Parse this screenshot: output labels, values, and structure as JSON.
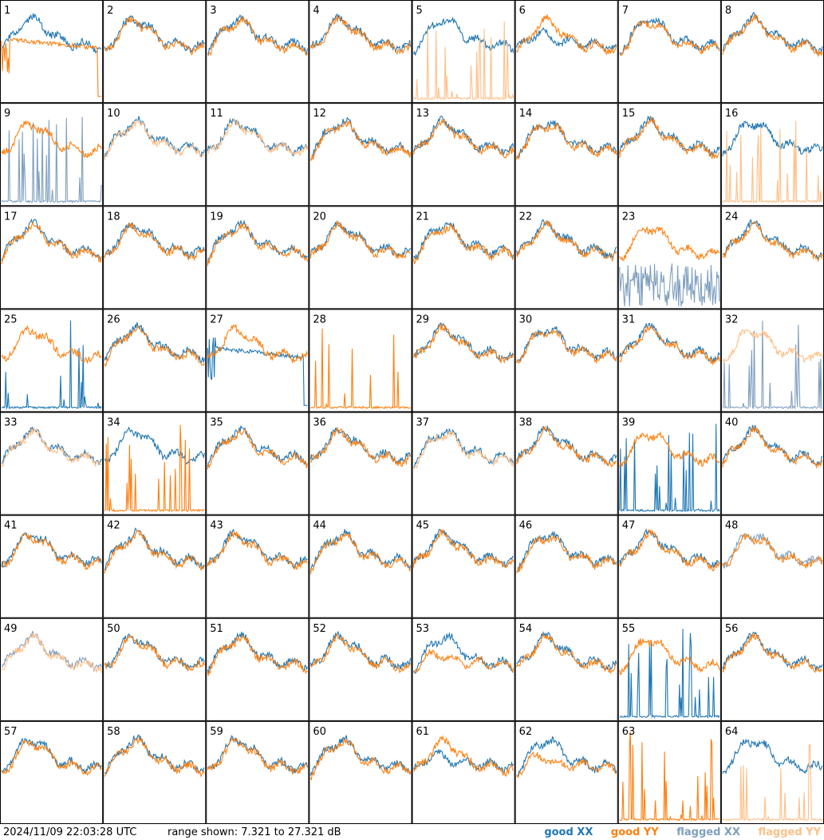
{
  "timestamp": "2024/11/09 22:03:28 UTC",
  "range_text": "range shown: 7.321 to 27.321 dB",
  "legend": [
    {
      "label": "good XX",
      "color": "#1f77b4"
    },
    {
      "label": "good YY",
      "color": "#ff7f0e"
    },
    {
      "label": "flagged XX",
      "color": "#7f9fbf"
    },
    {
      "label": "flagged YY",
      "color": "#ffbf87"
    }
  ],
  "chart_data": {
    "type": "line",
    "title": "",
    "ylim": [
      7.321,
      27.321
    ],
    "units": "dB",
    "grid": "8x8 small multiples",
    "panels": [
      {
        "id": "1",
        "xx": "good",
        "yy": "good",
        "pattern_xx": "normal",
        "pattern_yy": "ramp_drop"
      },
      {
        "id": "2",
        "xx": "good",
        "yy": "good"
      },
      {
        "id": "3",
        "xx": "good",
        "yy": "good"
      },
      {
        "id": "4",
        "xx": "good",
        "yy": "good"
      },
      {
        "id": "5",
        "xx": "good",
        "yy": "flagged",
        "pattern_yy": "spikes"
      },
      {
        "id": "6",
        "xx": "good",
        "yy": "good",
        "pattern_xx": "low_dip"
      },
      {
        "id": "7",
        "xx": "good",
        "yy": "good"
      },
      {
        "id": "8",
        "xx": "good",
        "yy": "good"
      },
      {
        "id": "9",
        "xx": "flagged",
        "yy": "good",
        "pattern_xx": "spikes"
      },
      {
        "id": "10",
        "xx": "good",
        "yy": "flagged"
      },
      {
        "id": "11",
        "xx": "good",
        "yy": "flagged"
      },
      {
        "id": "12",
        "xx": "good",
        "yy": "good"
      },
      {
        "id": "13",
        "xx": "good",
        "yy": "good"
      },
      {
        "id": "14",
        "xx": "good",
        "yy": "good"
      },
      {
        "id": "15",
        "xx": "good",
        "yy": "good"
      },
      {
        "id": "16",
        "xx": "good",
        "yy": "flagged",
        "pattern_yy": "spikes"
      },
      {
        "id": "17",
        "xx": "good",
        "yy": "good"
      },
      {
        "id": "18",
        "xx": "good",
        "yy": "good"
      },
      {
        "id": "19",
        "xx": "good",
        "yy": "good"
      },
      {
        "id": "20",
        "xx": "good",
        "yy": "good"
      },
      {
        "id": "21",
        "xx": "good",
        "yy": "good"
      },
      {
        "id": "22",
        "xx": "good",
        "yy": "good"
      },
      {
        "id": "23",
        "xx": "flagged",
        "yy": "good",
        "pattern_xx": "noisy_low"
      },
      {
        "id": "24",
        "xx": "good",
        "yy": "good"
      },
      {
        "id": "25",
        "xx": "good",
        "yy": "good",
        "pattern_xx": "spikes"
      },
      {
        "id": "26",
        "xx": "good",
        "yy": "good"
      },
      {
        "id": "27",
        "xx": "good",
        "yy": "good",
        "pattern_xx": "ramp_drop"
      },
      {
        "id": "28",
        "xx": "none",
        "yy": "good",
        "pattern_yy": "spikes"
      },
      {
        "id": "29",
        "xx": "good",
        "yy": "good"
      },
      {
        "id": "30",
        "xx": "good",
        "yy": "good"
      },
      {
        "id": "31",
        "xx": "good",
        "yy": "good"
      },
      {
        "id": "32",
        "xx": "flagged",
        "yy": "flagged",
        "pattern_xx": "spikes"
      },
      {
        "id": "33",
        "xx": "good",
        "yy": "flagged"
      },
      {
        "id": "34",
        "xx": "good",
        "yy": "good",
        "pattern_yy": "spikes"
      },
      {
        "id": "35",
        "xx": "good",
        "yy": "good"
      },
      {
        "id": "36",
        "xx": "good",
        "yy": "good"
      },
      {
        "id": "37",
        "xx": "good",
        "yy": "flagged"
      },
      {
        "id": "38",
        "xx": "good",
        "yy": "good"
      },
      {
        "id": "39",
        "xx": "good",
        "yy": "good",
        "pattern_xx": "spikes"
      },
      {
        "id": "40",
        "xx": "good",
        "yy": "good"
      },
      {
        "id": "41",
        "xx": "good",
        "yy": "good"
      },
      {
        "id": "42",
        "xx": "good",
        "yy": "good"
      },
      {
        "id": "43",
        "xx": "good",
        "yy": "good"
      },
      {
        "id": "44",
        "xx": "good",
        "yy": "good"
      },
      {
        "id": "45",
        "xx": "good",
        "yy": "good"
      },
      {
        "id": "46",
        "xx": "good",
        "yy": "good"
      },
      {
        "id": "47",
        "xx": "good",
        "yy": "good"
      },
      {
        "id": "48",
        "xx": "flagged",
        "yy": "good"
      },
      {
        "id": "49",
        "xx": "flagged",
        "yy": "flagged"
      },
      {
        "id": "50",
        "xx": "good",
        "yy": "good"
      },
      {
        "id": "51",
        "xx": "good",
        "yy": "good"
      },
      {
        "id": "52",
        "xx": "good",
        "yy": "good"
      },
      {
        "id": "53",
        "xx": "good",
        "yy": "good",
        "pattern_yy": "low_dip"
      },
      {
        "id": "54",
        "xx": "good",
        "yy": "good"
      },
      {
        "id": "55",
        "xx": "good",
        "yy": "good",
        "pattern_xx": "spikes"
      },
      {
        "id": "56",
        "xx": "good",
        "yy": "good"
      },
      {
        "id": "57",
        "xx": "good",
        "yy": "good"
      },
      {
        "id": "58",
        "xx": "good",
        "yy": "good"
      },
      {
        "id": "59",
        "xx": "good",
        "yy": "good"
      },
      {
        "id": "60",
        "xx": "good",
        "yy": "good"
      },
      {
        "id": "61",
        "xx": "good",
        "yy": "good",
        "pattern_xx": "low_dip"
      },
      {
        "id": "62",
        "xx": "good",
        "yy": "good",
        "pattern_yy": "low_dip"
      },
      {
        "id": "63",
        "xx": "none",
        "yy": "good",
        "pattern_yy": "spikes"
      },
      {
        "id": "64",
        "xx": "good",
        "yy": "flagged",
        "pattern_yy": "spikes"
      }
    ]
  }
}
